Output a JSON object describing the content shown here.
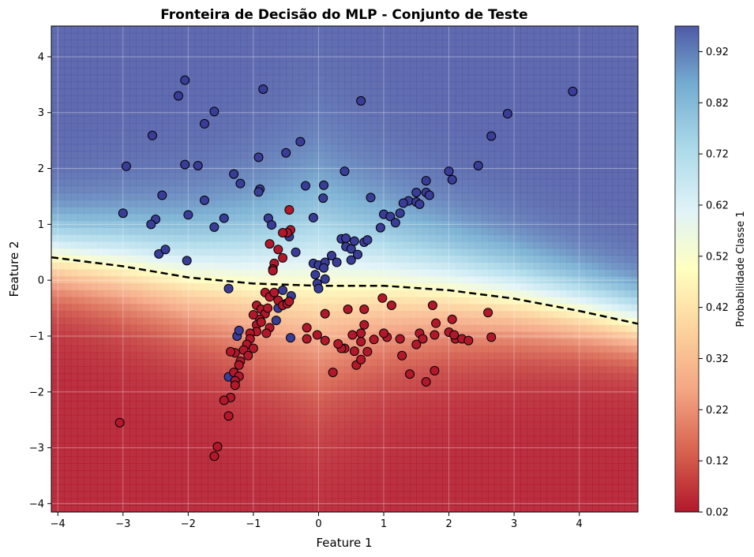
{
  "chart_data": {
    "type": "scatter",
    "title": "Fronteira de Decisão do MLP - Conjunto de Teste",
    "xlabel": "Feature 1",
    "ylabel": "Feature 2",
    "xlim": [
      -4.1,
      4.9
    ],
    "ylim": [
      -4.15,
      4.55
    ],
    "x_ticks": [
      -4,
      -3,
      -2,
      -1,
      0,
      1,
      2,
      3,
      4
    ],
    "y_ticks": [
      -4,
      -3,
      -2,
      -1,
      0,
      1,
      2,
      3,
      4
    ],
    "grid": true,
    "background": "filled contour of predicted probability of class 1 (red = 0, yellow ≈ 0.5, blue = 1)",
    "decision_boundary": {
      "style": "black dashed line (p = 0.5)",
      "x": [
        -4.1,
        -3.0,
        -2.0,
        -1.0,
        0.0,
        1.0,
        2.0,
        3.0,
        4.0,
        4.9
      ],
      "y": [
        0.41,
        0.25,
        0.05,
        -0.06,
        -0.1,
        -0.1,
        -0.18,
        -0.33,
        -0.55,
        -0.78
      ]
    },
    "colorbar": {
      "label": "Probabilidade Classe 1",
      "range": [
        0.02,
        0.97
      ],
      "ticks": [
        "0.02",
        "0.12",
        "0.22",
        "0.32",
        "0.42",
        "0.52",
        "0.62",
        "0.72",
        "0.82",
        "0.92"
      ],
      "colormap": "RdYlBu"
    },
    "series": [
      {
        "color": "#3a3d98",
        "points": [
          [
            -2.05,
            3.58
          ],
          [
            -2.15,
            3.3
          ],
          [
            -1.6,
            3.02
          ],
          [
            -1.75,
            2.8
          ],
          [
            -0.85,
            3.42
          ],
          [
            0.65,
            3.21
          ],
          [
            3.9,
            3.38
          ],
          [
            2.9,
            2.98
          ],
          [
            2.65,
            2.58
          ],
          [
            -2.55,
            2.59
          ],
          [
            -2.95,
            2.04
          ],
          [
            -2.05,
            2.07
          ],
          [
            -1.85,
            2.05
          ],
          [
            -0.92,
            2.2
          ],
          [
            -0.5,
            2.28
          ],
          [
            -0.28,
            2.48
          ],
          [
            0.4,
            1.95
          ],
          [
            -1.3,
            1.9
          ],
          [
            -1.2,
            1.73
          ],
          [
            -0.9,
            1.63
          ],
          [
            -0.92,
            1.58
          ],
          [
            -0.2,
            1.69
          ],
          [
            0.08,
            1.7
          ],
          [
            0.8,
            1.48
          ],
          [
            0.07,
            1.47
          ],
          [
            -2.4,
            1.52
          ],
          [
            -1.75,
            1.43
          ],
          [
            -3.0,
            1.2
          ],
          [
            -2.5,
            1.09
          ],
          [
            -2.57,
            1.0
          ],
          [
            -2.0,
            1.17
          ],
          [
            -1.45,
            1.11
          ],
          [
            -1.6,
            0.95
          ],
          [
            -0.77,
            1.11
          ],
          [
            -0.72,
            0.99
          ],
          [
            -0.08,
            1.12
          ],
          [
            2.0,
            1.95
          ],
          [
            2.05,
            1.8
          ],
          [
            2.45,
            2.05
          ],
          [
            1.65,
            1.78
          ],
          [
            1.5,
            1.57
          ],
          [
            1.65,
            1.57
          ],
          [
            1.7,
            1.52
          ],
          [
            1.38,
            1.42
          ],
          [
            1.5,
            1.4
          ],
          [
            1.3,
            1.38
          ],
          [
            1.55,
            1.36
          ],
          [
            1.25,
            1.2
          ],
          [
            1.0,
            1.18
          ],
          [
            1.1,
            1.14
          ],
          [
            1.18,
            1.03
          ],
          [
            0.95,
            0.94
          ],
          [
            -2.45,
            0.47
          ],
          [
            -2.35,
            0.55
          ],
          [
            -2.02,
            0.35
          ],
          [
            -0.45,
            0.78
          ],
          [
            -0.35,
            0.5
          ],
          [
            -0.08,
            0.3
          ],
          [
            0.0,
            0.27
          ],
          [
            0.1,
            0.32
          ],
          [
            0.08,
            0.22
          ],
          [
            0.2,
            0.44
          ],
          [
            0.28,
            0.32
          ],
          [
            0.35,
            0.74
          ],
          [
            0.42,
            0.75
          ],
          [
            0.42,
            0.6
          ],
          [
            0.5,
            0.56
          ],
          [
            0.55,
            0.7
          ],
          [
            0.6,
            0.46
          ],
          [
            0.7,
            0.68
          ],
          [
            0.75,
            0.72
          ],
          [
            0.5,
            0.36
          ],
          [
            -0.05,
            0.1
          ],
          [
            -0.02,
            -0.06
          ],
          [
            0.1,
            0.02
          ],
          [
            0.0,
            -0.15
          ],
          [
            -1.38,
            -0.15
          ],
          [
            -0.55,
            -0.18
          ],
          [
            -0.42,
            -0.28
          ],
          [
            -0.5,
            -0.42
          ],
          [
            -0.62,
            -0.5
          ],
          [
            -0.65,
            -0.72
          ],
          [
            -0.43,
            -1.03
          ],
          [
            -1.25,
            -1.0
          ],
          [
            -1.22,
            -0.9
          ],
          [
            -1.38,
            -1.73
          ]
        ]
      },
      {
        "color": "#b2182b",
        "points": [
          [
            -0.45,
            1.26
          ],
          [
            -0.43,
            0.9
          ],
          [
            -0.48,
            0.85
          ],
          [
            -0.55,
            0.85
          ],
          [
            -0.62,
            0.55
          ],
          [
            -0.55,
            0.4
          ],
          [
            -0.75,
            0.65
          ],
          [
            -0.68,
            0.3
          ],
          [
            -0.7,
            0.2
          ],
          [
            -0.7,
            0.17
          ],
          [
            -0.82,
            -0.22
          ],
          [
            -0.75,
            -0.3
          ],
          [
            -0.68,
            -0.22
          ],
          [
            -0.62,
            -0.36
          ],
          [
            -0.55,
            -0.45
          ],
          [
            -0.48,
            -0.42
          ],
          [
            -0.45,
            -0.38
          ],
          [
            -0.95,
            -0.45
          ],
          [
            -0.88,
            -0.52
          ],
          [
            -0.82,
            -0.6
          ],
          [
            -0.78,
            -0.5
          ],
          [
            -0.9,
            -0.7
          ],
          [
            -1.0,
            -0.62
          ],
          [
            -0.95,
            -0.8
          ],
          [
            -0.88,
            -0.75
          ],
          [
            -0.75,
            -0.85
          ],
          [
            -0.8,
            -0.95
          ],
          [
            -0.95,
            -0.92
          ],
          [
            -1.05,
            -0.95
          ],
          [
            -1.05,
            -1.05
          ],
          [
            -1.1,
            -1.15
          ],
          [
            -1.15,
            -1.25
          ],
          [
            -1.0,
            -1.22
          ],
          [
            -1.08,
            -1.35
          ],
          [
            -1.2,
            -1.45
          ],
          [
            -1.22,
            -1.52
          ],
          [
            -1.28,
            -1.3
          ],
          [
            -1.35,
            -1.28
          ],
          [
            -1.3,
            -1.65
          ],
          [
            -1.22,
            -1.72
          ],
          [
            -1.28,
            -1.8
          ],
          [
            -1.28,
            -1.88
          ],
          [
            -1.35,
            -2.1
          ],
          [
            -1.45,
            -2.15
          ],
          [
            -1.38,
            -2.43
          ],
          [
            -1.55,
            -2.98
          ],
          [
            -1.6,
            -3.15
          ],
          [
            -3.05,
            -2.55
          ],
          [
            0.1,
            -0.6
          ],
          [
            0.45,
            -0.52
          ],
          [
            0.7,
            -0.52
          ],
          [
            0.98,
            -0.32
          ],
          [
            1.12,
            -0.45
          ],
          [
            1.75,
            -0.45
          ],
          [
            1.8,
            -0.77
          ],
          [
            1.55,
            -0.95
          ],
          [
            2.05,
            -0.7
          ],
          [
            2.6,
            -0.58
          ],
          [
            2.0,
            -0.93
          ],
          [
            2.1,
            -1.05
          ],
          [
            2.2,
            -1.05
          ],
          [
            2.3,
            -1.08
          ],
          [
            2.65,
            -1.02
          ],
          [
            2.08,
            -0.98
          ],
          [
            1.78,
            -0.98
          ],
          [
            1.5,
            -1.15
          ],
          [
            1.6,
            -1.05
          ],
          [
            1.4,
            -1.68
          ],
          [
            1.65,
            -1.82
          ],
          [
            1.78,
            -1.62
          ],
          [
            1.25,
            -1.05
          ],
          [
            1.28,
            -1.35
          ],
          [
            1.05,
            -1.02
          ],
          [
            1.0,
            -0.95
          ],
          [
            0.85,
            -1.06
          ],
          [
            0.7,
            -0.8
          ],
          [
            0.65,
            -0.95
          ],
          [
            0.65,
            -1.1
          ],
          [
            0.52,
            -0.98
          ],
          [
            0.55,
            -1.27
          ],
          [
            0.58,
            -1.52
          ],
          [
            0.65,
            -1.42
          ],
          [
            0.75,
            -1.28
          ],
          [
            0.4,
            -1.22
          ],
          [
            0.35,
            -1.22
          ],
          [
            0.3,
            -1.14
          ],
          [
            0.1,
            -1.08
          ],
          [
            -0.02,
            -0.98
          ],
          [
            -0.18,
            -0.85
          ],
          [
            -0.18,
            -1.05
          ],
          [
            0.22,
            -1.65
          ]
        ]
      }
    ]
  }
}
